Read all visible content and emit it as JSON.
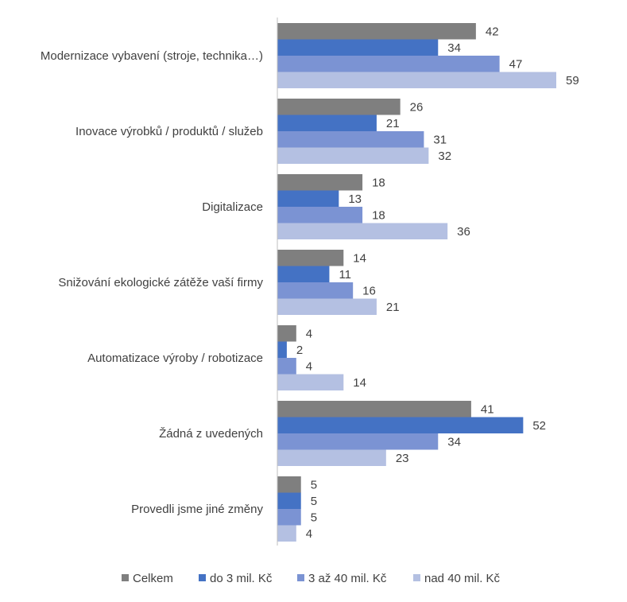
{
  "chart_data": {
    "type": "bar",
    "orientation": "horizontal",
    "title": "",
    "xlabel": "",
    "ylabel": "",
    "grid": false,
    "legend_position": "bottom",
    "xlim": [
      0,
      60
    ],
    "categories": [
      "Modernizace vybavení (stroje, technika…)",
      "Inovace výrobků / produktů / služeb",
      "Digitalizace",
      "Snižování ekologické zátěže vaší firmy",
      "Automatizace výroby / robotizace",
      "Žádná z uvedených",
      "Provedli jsme jiné změny"
    ],
    "series": [
      {
        "name": "Celkem",
        "color": "#7f7f7f",
        "values": [
          42,
          26,
          18,
          14,
          4,
          41,
          5
        ]
      },
      {
        "name": "do 3 mil. Kč",
        "color": "#4472c4",
        "values": [
          34,
          21,
          13,
          11,
          2,
          52,
          5
        ]
      },
      {
        "name": "3 až 40 mil. Kč",
        "color": "#7b93d3",
        "values": [
          47,
          31,
          18,
          16,
          4,
          34,
          5
        ]
      },
      {
        "name": "nad 40 mil. Kč",
        "color": "#b4c0e2",
        "values": [
          59,
          32,
          36,
          21,
          14,
          23,
          4
        ]
      }
    ]
  }
}
